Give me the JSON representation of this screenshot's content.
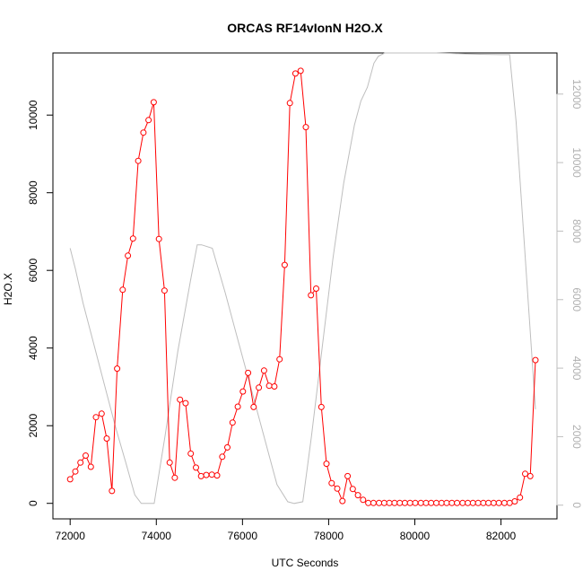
{
  "chart_data": {
    "type": "line",
    "title": "ORCAS RF14vIonN H2O.X",
    "xlabel": "UTC Seconds",
    "ylabel": "H2O.X",
    "xlim": [
      71600,
      83300
    ],
    "ylim": [
      -400,
      11600
    ],
    "y2lim": [
      -400,
      13200
    ],
    "x_ticks": [
      72000,
      74000,
      76000,
      78000,
      80000,
      82000
    ],
    "y_ticks": [
      0,
      2000,
      4000,
      6000,
      8000,
      10000
    ],
    "y2_ticks": [
      0,
      2000,
      4000,
      6000,
      8000,
      10000,
      12000
    ],
    "x_tick_labels": [
      "72000",
      "74000",
      "76000",
      "78000",
      "80000",
      "82000"
    ],
    "y_tick_labels": [
      "0",
      "2000",
      "4000",
      "6000",
      "8000",
      "10000"
    ],
    "y2_tick_labels": [
      "0",
      "2000",
      "4000",
      "6000",
      "8000",
      "10000",
      "12000"
    ],
    "series": [
      {
        "color": "#ff0000",
        "axis": "left",
        "marker": "circle",
        "x": [
          72000,
          72120,
          72240,
          72360,
          72480,
          72600,
          72730,
          72850,
          72970,
          73090,
          73220,
          73340,
          73460,
          73580,
          73700,
          73820,
          73940,
          74060,
          74190,
          74310,
          74430,
          74550,
          74680,
          74800,
          74920,
          75040,
          75160,
          75290,
          75410,
          75530,
          75650,
          75770,
          75890,
          76010,
          76130,
          76260,
          76380,
          76500,
          76620,
          76740,
          76860,
          76980,
          77100,
          77230,
          77350,
          77470,
          77590,
          77710,
          77830,
          77950,
          78070,
          78200,
          78320,
          78440,
          78560,
          78680,
          78800,
          78920,
          79040,
          79170,
          79290,
          79410,
          79530,
          79650,
          79770,
          79890,
          80010,
          80140,
          80260,
          80380,
          80500,
          80620,
          80740,
          80860,
          80980,
          81110,
          81230,
          81350,
          81470,
          81590,
          81710,
          81830,
          81950,
          82080,
          82200,
          82320,
          82440,
          82560,
          82680,
          82800
        ],
        "y": [
          620,
          820,
          1050,
          1230,
          940,
          2220,
          2310,
          1670,
          320,
          3470,
          5500,
          6380,
          6820,
          8820,
          9550,
          9870,
          10330,
          6810,
          5480,
          1050,
          660,
          2670,
          2580,
          1280,
          920,
          700,
          730,
          740,
          720,
          1200,
          1440,
          2080,
          2490,
          2880,
          3360,
          2480,
          2980,
          3420,
          3030,
          3010,
          3710,
          6140,
          10310,
          11070,
          11140,
          9690,
          5360,
          5530,
          2480,
          1020,
          520,
          380,
          60,
          700,
          370,
          210,
          90,
          10,
          10,
          10,
          10,
          10,
          10,
          10,
          10,
          10,
          10,
          10,
          10,
          10,
          10,
          10,
          10,
          10,
          10,
          10,
          10,
          10,
          10,
          10,
          10,
          10,
          10,
          10,
          10,
          50,
          150,
          760,
          700,
          3690
        ]
      },
      {
        "color": "#bebebe",
        "axis": "right",
        "marker": "none",
        "x": [
          72000,
          72120,
          72300,
          72550,
          72800,
          73050,
          73300,
          73500,
          73650,
          73800,
          73950,
          74200,
          74500,
          74800,
          74950,
          75050,
          75300,
          75600,
          75900,
          76200,
          76500,
          76800,
          77050,
          77200,
          77400,
          77600,
          77850,
          78100,
          78350,
          78600,
          78750,
          78900,
          79050,
          79150,
          79300,
          79600,
          80000,
          80500,
          81000,
          81500,
          82000,
          82200,
          82350,
          82500,
          82650,
          82800
        ],
        "y": [
          7500,
          6900,
          5900,
          4700,
          3500,
          2300,
          1200,
          300,
          50,
          50,
          50,
          2000,
          4500,
          6600,
          7600,
          7600,
          7500,
          6200,
          4800,
          3400,
          2000,
          600,
          100,
          50,
          100,
          2000,
          4600,
          7200,
          9400,
          11100,
          11800,
          12200,
          12900,
          13100,
          13200,
          13200,
          13200,
          13200,
          13180,
          13160,
          13150,
          13150,
          11200,
          8400,
          5600,
          2800
        ]
      }
    ]
  }
}
